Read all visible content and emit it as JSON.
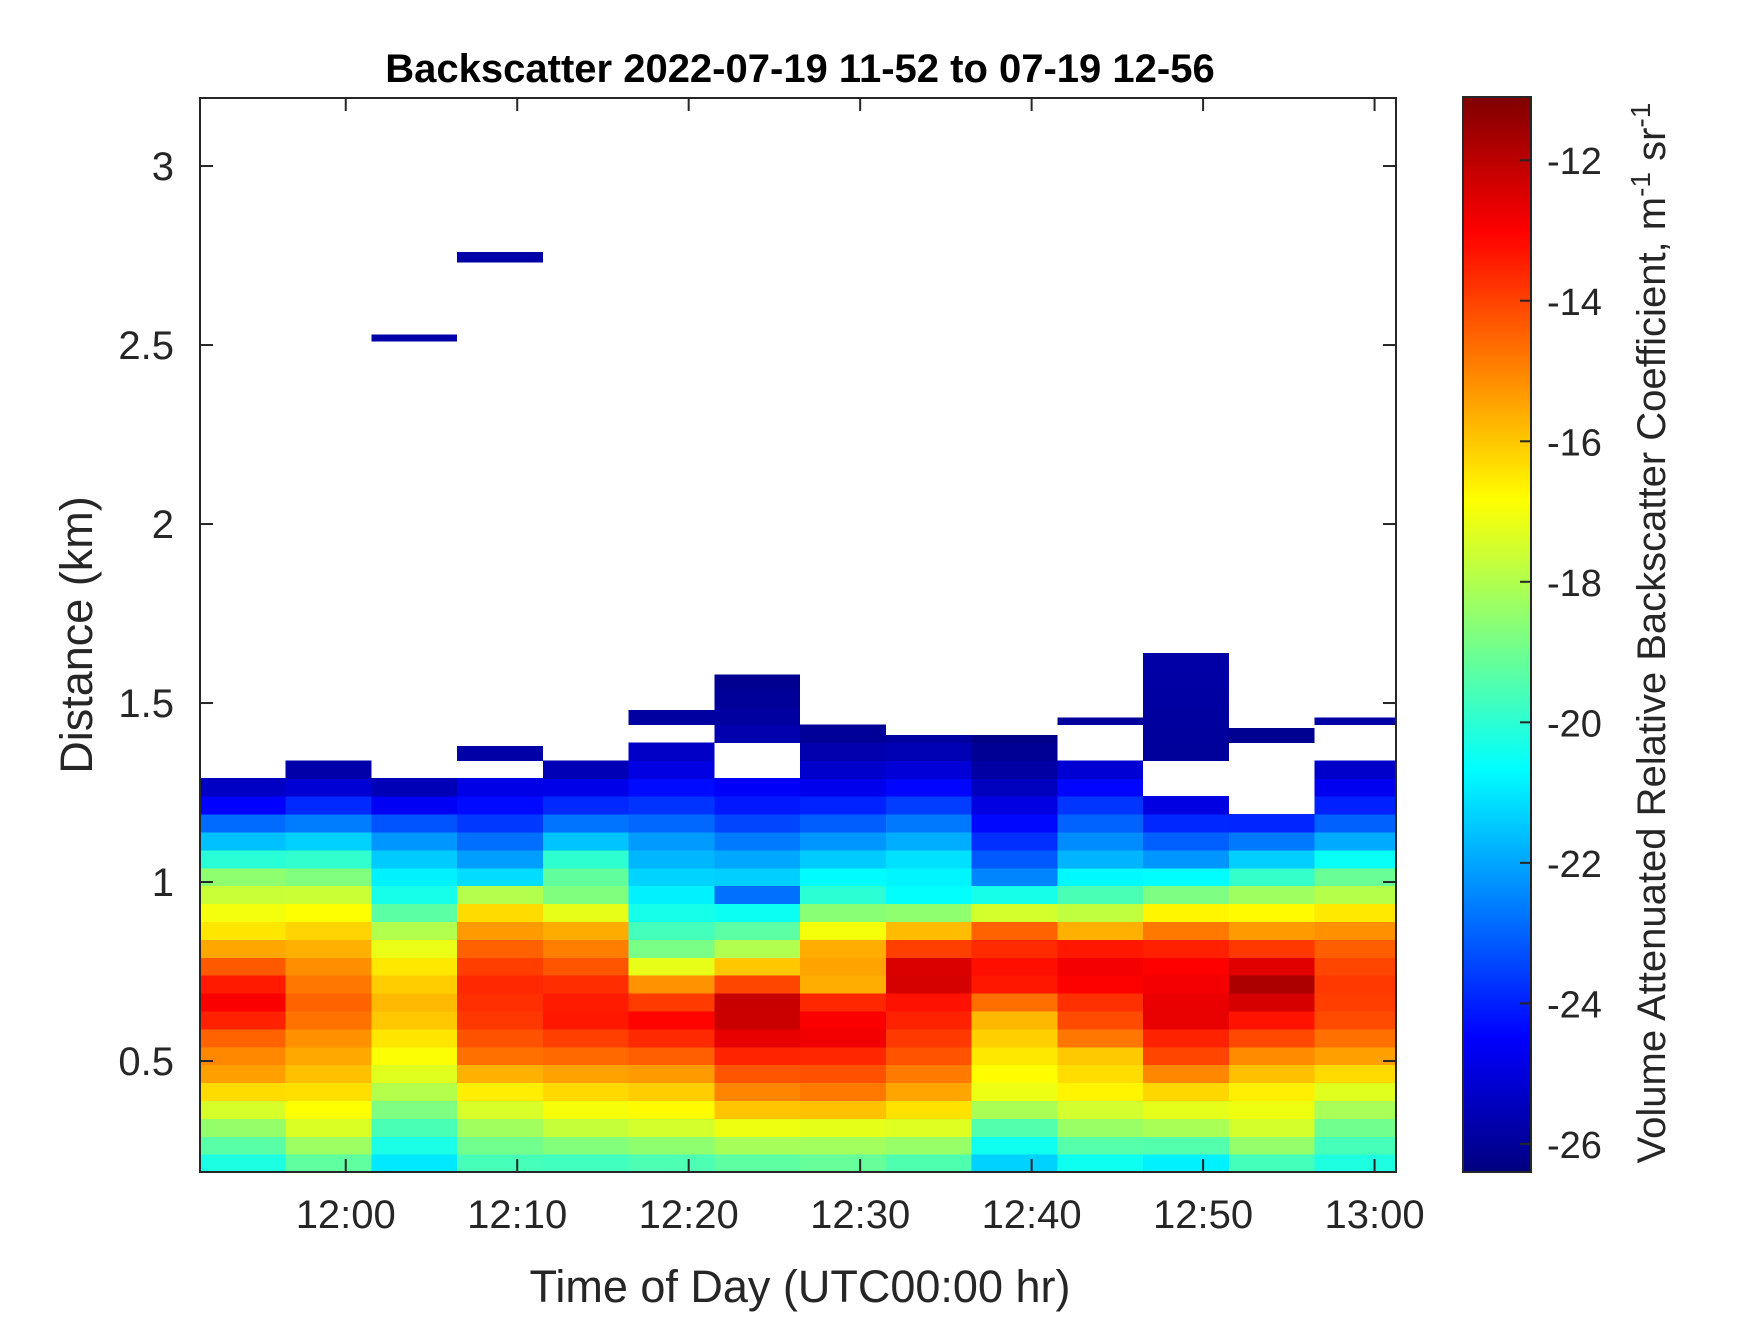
{
  "chart_data": {
    "type": "heatmap",
    "title": "Backscatter 2022-07-19 11-52 to 07-19 12-56",
    "xlabel": "Time of Day (UTC00:00 hr)",
    "ylabel": "Distance (km)",
    "colorbar_label": "Volume Attenuated Relative Backscatter Coefficient, m",
    "colorbar_unit_sup1": "-1",
    "colorbar_unit_mid": " sr",
    "colorbar_unit_sup2": "-1",
    "colormap": "jet",
    "xlim": [
      "11:51:30",
      "13:01:15"
    ],
    "ylim": [
      0.19,
      3.19
    ],
    "clim": [
      -26.4,
      -11.1
    ],
    "x_ticks": [
      {
        "label": "12:00",
        "min": 720
      },
      {
        "label": "12:10",
        "min": 730
      },
      {
        "label": "12:20",
        "min": 740
      },
      {
        "label": "12:30",
        "min": 750
      },
      {
        "label": "12:40",
        "min": 760
      },
      {
        "label": "12:50",
        "min": 770
      },
      {
        "label": "13:00",
        "min": 780
      }
    ],
    "y_ticks": [
      {
        "label": "0.5",
        "value": 0.5
      },
      {
        "label": "1",
        "value": 1
      },
      {
        "label": "1.5",
        "value": 1.5
      },
      {
        "label": "2",
        "value": 2
      },
      {
        "label": "2.5",
        "value": 2.5
      },
      {
        "label": "3",
        "value": 3
      }
    ],
    "c_ticks": [
      {
        "label": "-12",
        "value": -12
      },
      {
        "label": "-14",
        "value": -14
      },
      {
        "label": "-16",
        "value": -16
      },
      {
        "label": "-18",
        "value": -18
      },
      {
        "label": "-20",
        "value": -20
      },
      {
        "label": "-22",
        "value": -22
      },
      {
        "label": "-24",
        "value": -24
      },
      {
        "label": "-26",
        "value": -26
      }
    ],
    "time_columns": [
      "11:51:30",
      "11:56:30",
      "12:01:30",
      "12:06:30",
      "12:11:30",
      "12:16:30",
      "12:21:30",
      "12:26:30",
      "12:31:30",
      "12:36:30",
      "12:41:30",
      "12:46:30",
      "12:51:30",
      "12:56:30"
    ],
    "column_duration_min": 5,
    "range_bin_km": 0.05,
    "profiles": [
      {
        "top": 1.29,
        "pts": [
          [
            0.2,
            -20.5
          ],
          [
            0.35,
            -17.8
          ],
          [
            0.45,
            -15.5
          ],
          [
            0.55,
            -14.8
          ],
          [
            0.62,
            -13.4
          ],
          [
            0.68,
            -12.8
          ],
          [
            0.75,
            -14
          ],
          [
            0.85,
            -16.3
          ],
          [
            0.95,
            -17.4
          ],
          [
            1.02,
            -18.6
          ],
          [
            1.1,
            -21.2
          ],
          [
            1.17,
            -23
          ],
          [
            1.23,
            -25
          ],
          [
            1.29,
            -25.6
          ]
        ]
      },
      {
        "top": 1.34,
        "pts": [
          [
            0.2,
            -19.5
          ],
          [
            0.32,
            -17.3
          ],
          [
            0.45,
            -16
          ],
          [
            0.55,
            -15.3
          ],
          [
            0.65,
            -14.4
          ],
          [
            0.75,
            -15
          ],
          [
            0.85,
            -16
          ],
          [
            0.95,
            -17.3
          ],
          [
            1.05,
            -19.5
          ],
          [
            1.12,
            -21.5
          ],
          [
            1.2,
            -23.5
          ],
          [
            1.28,
            -25.5
          ],
          [
            1.34,
            -26
          ]
        ]
      },
      {
        "top": 1.29,
        "pts": [
          [
            0.2,
            -21.2
          ],
          [
            0.32,
            -19.5
          ],
          [
            0.45,
            -17.4
          ],
          [
            0.55,
            -16.6
          ],
          [
            0.65,
            -15.7
          ],
          [
            0.75,
            -16.3
          ],
          [
            0.85,
            -17.6
          ],
          [
            0.95,
            -20.2
          ],
          [
            1.05,
            -21.2
          ],
          [
            1.15,
            -22.8
          ],
          [
            1.22,
            -24.8
          ],
          [
            1.29,
            -26
          ]
        ]
      },
      {
        "top": 1.38,
        "pts": [
          [
            0.2,
            -19.8
          ],
          [
            0.3,
            -18.5
          ],
          [
            0.42,
            -16.5
          ],
          [
            0.52,
            -14.6
          ],
          [
            0.62,
            -13.8
          ],
          [
            0.72,
            -13.6
          ],
          [
            0.8,
            -14.2
          ],
          [
            0.88,
            -15.6
          ],
          [
            0.95,
            -17
          ],
          [
            1.02,
            -21.5
          ],
          [
            1.1,
            -22.6
          ],
          [
            1.2,
            -24.2
          ],
          [
            1.3,
            -25.2
          ],
          [
            1.38,
            -26
          ]
        ]
      },
      {
        "top": 1.37,
        "pts": [
          [
            0.2,
            -20
          ],
          [
            0.32,
            -17.6
          ],
          [
            0.42,
            -16.2
          ],
          [
            0.52,
            -14.5
          ],
          [
            0.62,
            -13.3
          ],
          [
            0.7,
            -13.5
          ],
          [
            0.8,
            -14.7
          ],
          [
            0.88,
            -15.8
          ],
          [
            0.95,
            -18.6
          ],
          [
            1.05,
            -19.5
          ],
          [
            1.12,
            -21.7
          ],
          [
            1.2,
            -23.6
          ],
          [
            1.3,
            -25.5
          ],
          [
            1.37,
            -25.9
          ]
        ]
      },
      {
        "top": 1.48,
        "pts": [
          [
            0.2,
            -19.8
          ],
          [
            0.32,
            -17.4
          ],
          [
            0.45,
            -15.6
          ],
          [
            0.55,
            -13.8
          ],
          [
            0.62,
            -13
          ],
          [
            0.7,
            -14.6
          ],
          [
            0.8,
            -18.6
          ],
          [
            0.9,
            -20.2
          ],
          [
            1.0,
            -21.2
          ],
          [
            1.12,
            -22.2
          ],
          [
            1.22,
            -23.8
          ],
          [
            1.32,
            -25
          ],
          [
            1.4,
            -25.6
          ],
          [
            1.48,
            -26
          ]
        ]
      },
      {
        "top": 1.58,
        "pts": [
          [
            0.2,
            -19.6
          ],
          [
            0.3,
            -17.4
          ],
          [
            0.4,
            -15.2
          ],
          [
            0.5,
            -13.8
          ],
          [
            0.58,
            -12.4
          ],
          [
            0.66,
            -12
          ],
          [
            0.74,
            -15
          ],
          [
            0.82,
            -18.2
          ],
          [
            0.92,
            -20.6
          ],
          [
            0.95,
            -23.5
          ],
          [
            1.0,
            -21.2
          ],
          [
            1.1,
            -22.4
          ],
          [
            1.2,
            -24
          ],
          [
            1.31,
            -25
          ],
          [
            1.43,
            -25.8
          ],
          [
            1.58,
            -26.2
          ]
        ]
      },
      {
        "top": 1.53,
        "pts": [
          [
            0.2,
            -19.4
          ],
          [
            0.3,
            -17.6
          ],
          [
            0.4,
            -15
          ],
          [
            0.5,
            -13.8
          ],
          [
            0.58,
            -12.6
          ],
          [
            0.66,
            -13.4
          ],
          [
            0.72,
            -15.8
          ],
          [
            0.8,
            -15.2
          ],
          [
            0.88,
            -17.4
          ],
          [
            0.95,
            -19.8
          ],
          [
            1.05,
            -21.2
          ],
          [
            1.15,
            -22.8
          ],
          [
            1.25,
            -24.6
          ],
          [
            1.35,
            -25.6
          ],
          [
            1.44,
            -26.2
          ],
          [
            1.53,
            -25.8
          ]
        ]
      },
      {
        "top": 1.41,
        "pts": [
          [
            0.2,
            -19.8
          ],
          [
            0.3,
            -17.6
          ],
          [
            0.42,
            -15.4
          ],
          [
            0.52,
            -14.2
          ],
          [
            0.6,
            -13.6
          ],
          [
            0.68,
            -13.2
          ],
          [
            0.74,
            -11.8
          ],
          [
            0.8,
            -13.4
          ],
          [
            0.88,
            -16.4
          ],
          [
            0.95,
            -20.6
          ],
          [
            1.05,
            -20.9
          ],
          [
            1.15,
            -22.4
          ],
          [
            1.25,
            -24.2
          ],
          [
            1.33,
            -25.3
          ],
          [
            1.41,
            -26
          ]
        ]
      },
      {
        "top": 1.41,
        "pts": [
          [
            0.2,
            -21.6
          ],
          [
            0.3,
            -19.8
          ],
          [
            0.4,
            -17.2
          ],
          [
            0.5,
            -16.6
          ],
          [
            0.58,
            -16
          ],
          [
            0.64,
            -15.6
          ],
          [
            0.7,
            -13.4
          ],
          [
            0.78,
            -13.2
          ],
          [
            0.86,
            -14.2
          ],
          [
            0.92,
            -17.8
          ],
          [
            1.0,
            -22.3
          ],
          [
            1.1,
            -23.6
          ],
          [
            1.2,
            -24.8
          ],
          [
            1.3,
            -25.8
          ],
          [
            1.41,
            -26.3
          ]
        ]
      },
      {
        "top": 1.46,
        "pts": [
          [
            0.2,
            -20.8
          ],
          [
            0.3,
            -18.6
          ],
          [
            0.42,
            -16.6
          ],
          [
            0.52,
            -16
          ],
          [
            0.58,
            -14.4
          ],
          [
            0.66,
            -13.8
          ],
          [
            0.74,
            -12.6
          ],
          [
            0.82,
            -13.4
          ],
          [
            0.88,
            -16.4
          ],
          [
            0.95,
            -19.2
          ],
          [
            1.05,
            -21.6
          ],
          [
            1.15,
            -22.8
          ],
          [
            1.25,
            -24.2
          ],
          [
            1.35,
            -25.6
          ],
          [
            1.46,
            -26
          ]
        ]
      },
      {
        "top": 1.63,
        "pts": [
          [
            0.2,
            -21.3
          ],
          [
            0.3,
            -18.4
          ],
          [
            0.4,
            -16.6
          ],
          [
            0.5,
            -14.2
          ],
          [
            0.56,
            -13.6
          ],
          [
            0.62,
            -12.6
          ],
          [
            0.7,
            -12.8
          ],
          [
            0.8,
            -13.1
          ],
          [
            0.88,
            -15.2
          ],
          [
            0.95,
            -18.2
          ],
          [
            1.05,
            -22
          ],
          [
            1.15,
            -23.6
          ],
          [
            1.25,
            -25.6
          ],
          [
            1.37,
            -26
          ],
          [
            1.63,
            -25.8
          ]
        ]
      },
      {
        "top": 1.43,
        "pts": [
          [
            0.2,
            -20
          ],
          [
            0.3,
            -17.6
          ],
          [
            0.4,
            -16.8
          ],
          [
            0.5,
            -15.4
          ],
          [
            0.58,
            -13.8
          ],
          [
            0.65,
            -12.8
          ],
          [
            0.7,
            -11.5
          ],
          [
            0.78,
            -12.8
          ],
          [
            0.86,
            -15.2
          ],
          [
            0.95,
            -17.8
          ],
          [
            1.05,
            -21
          ],
          [
            1.12,
            -22.8
          ],
          [
            1.2,
            -24.8
          ],
          [
            1.3,
            -25.8
          ],
          [
            1.43,
            -26.2
          ]
        ]
      },
      {
        "top": 1.46,
        "pts": [
          [
            0.2,
            -20.4
          ],
          [
            0.3,
            -19.2
          ],
          [
            0.4,
            -17.6
          ],
          [
            0.5,
            -15.6
          ],
          [
            0.6,
            -14.2
          ],
          [
            0.7,
            -13.8
          ],
          [
            0.8,
            -14.2
          ],
          [
            0.88,
            -15.4
          ],
          [
            0.95,
            -17.6
          ],
          [
            1.02,
            -19.2
          ],
          [
            1.1,
            -21.6
          ],
          [
            1.2,
            -23.8
          ],
          [
            1.3,
            -25.2
          ],
          [
            1.46,
            -25.9
          ]
        ]
      }
    ],
    "gaps": [
      {
        "col": 1,
        "from": 1.34,
        "to": 1.37
      },
      {
        "col": 3,
        "from": 1.27,
        "to": 1.33
      },
      {
        "col": 4,
        "from": 1.35,
        "to": 1.36
      },
      {
        "col": 5,
        "from": 1.38,
        "to": 1.43
      },
      {
        "col": 6,
        "from": 1.31,
        "to": 1.41
      },
      {
        "col": 6,
        "from": 1.53,
        "to": 1.56
      },
      {
        "col": 7,
        "from": 1.43,
        "to": 1.52
      },
      {
        "col": 9,
        "from": 1.28,
        "to": 1.3
      },
      {
        "col": 10,
        "from": 1.35,
        "to": 1.37
      },
      {
        "col": 10,
        "from": 1.4,
        "to": 1.42
      },
      {
        "col": 11,
        "from": 1.25,
        "to": 1.36
      },
      {
        "col": 12,
        "from": 1.21,
        "to": 1.23
      },
      {
        "col": 12,
        "from": 1.26,
        "to": 1.29
      },
      {
        "col": 12,
        "from": 1.31,
        "to": 1.41
      },
      {
        "col": 13,
        "from": 1.33,
        "to": 1.42
      }
    ],
    "isolated_returns": [
      {
        "col": 2,
        "from": 2.51,
        "to": 2.53,
        "value": -25.8
      },
      {
        "col": 3,
        "from": 2.73,
        "to": 2.76,
        "value": -25.8
      },
      {
        "col": 11,
        "from": 1.61,
        "to": 1.64,
        "value": -25.8
      }
    ]
  }
}
